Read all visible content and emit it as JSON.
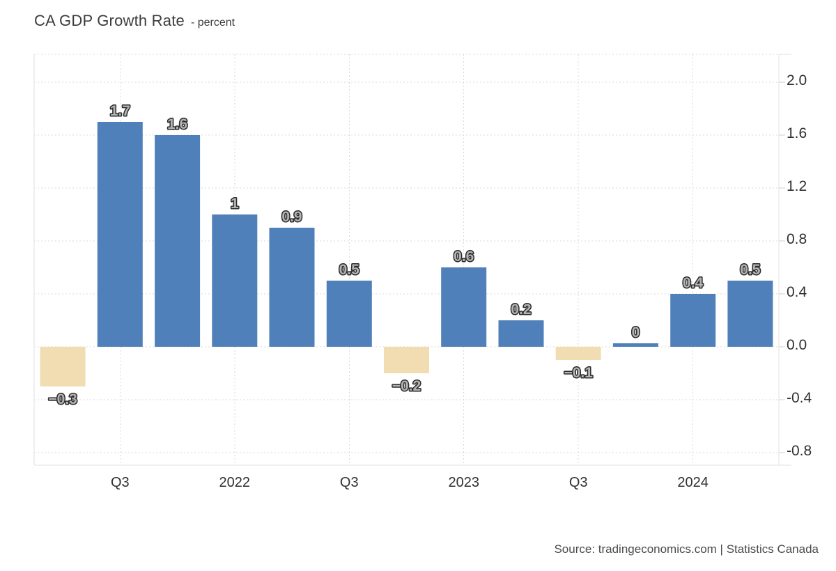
{
  "header": {
    "title": "CA GDP Growth Rate",
    "subtitle": "- percent"
  },
  "footer": {
    "source": "Source: tradingeconomics.com | Statistics Canada"
  },
  "chart_data": {
    "type": "bar",
    "title": "CA GDP Growth Rate",
    "unit": "percent",
    "categories": [
      "",
      "Q3",
      "",
      "2022",
      "",
      "Q3",
      "",
      "2023",
      "",
      "Q3",
      "",
      "2024",
      ""
    ],
    "values": [
      -0.3,
      1.7,
      1.6,
      1,
      0.9,
      0.5,
      -0.2,
      0.6,
      0.2,
      -0.1,
      0,
      0.4,
      0.5
    ],
    "value_labels": [
      "−0.3",
      "1.7",
      "1.6",
      "1",
      "0.9",
      "0.5",
      "−0.2",
      "0.6",
      "0.2",
      "−0.1",
      "0",
      "0.4",
      "0.5"
    ],
    "x_tick_labels": [
      "Q3",
      "2022",
      "Q3",
      "2023",
      "Q3",
      "2024"
    ],
    "y_tick_labels": [
      "2.0",
      "1.6",
      "1.2",
      "0.8",
      "0.4",
      "0.0",
      "-0.4",
      "-0.8"
    ],
    "ylim": [
      -0.89,
      2.21
    ],
    "grid": "dotted",
    "legend": "none",
    "colors": {
      "positive_bar": "#4f80ba",
      "negative_bar": "#f2ddb3",
      "gridline": "#dadada",
      "axis_border": "#e2e2e2",
      "axis_tick": "#cfcfcf",
      "tick_text": "#303030",
      "value_label_fill": "#b3b3b3",
      "value_label_outline": "#2b2b2b",
      "value_label_halo": "#ffffff"
    }
  }
}
